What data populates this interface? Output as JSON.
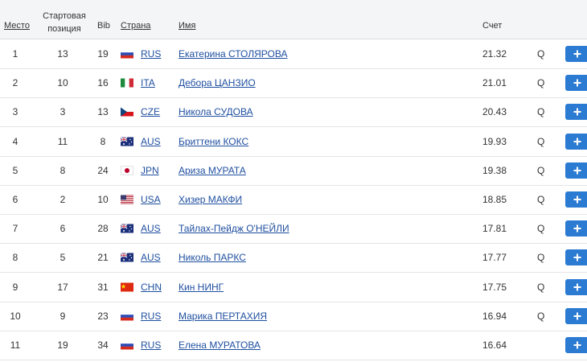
{
  "header": {
    "place": "Место",
    "start": "Стартовая позиция",
    "bib": "Bib",
    "country": "Страна",
    "name": "Имя",
    "score": "Счет"
  },
  "rows": [
    {
      "place": 1,
      "start": 13,
      "bib": 19,
      "country": "RUS",
      "name": "Екатерина СТОЛЯРОВА",
      "score": 21.32,
      "qual": "Q"
    },
    {
      "place": 2,
      "start": 10,
      "bib": 16,
      "country": "ITA",
      "name": "Дебора ЦАНЗИО",
      "score": 21.01,
      "qual": "Q"
    },
    {
      "place": 3,
      "start": 3,
      "bib": 13,
      "country": "CZE",
      "name": "Никола СУДОВА",
      "score": 20.43,
      "qual": "Q"
    },
    {
      "place": 4,
      "start": 11,
      "bib": 8,
      "country": "AUS",
      "name": "Бриттени КОКС",
      "score": 19.93,
      "qual": "Q"
    },
    {
      "place": 5,
      "start": 8,
      "bib": 24,
      "country": "JPN",
      "name": "Ариза МУРАТА",
      "score": 19.38,
      "qual": "Q"
    },
    {
      "place": 6,
      "start": 2,
      "bib": 10,
      "country": "USA",
      "name": "Хизер МАКФИ",
      "score": 18.85,
      "qual": "Q"
    },
    {
      "place": 7,
      "start": 6,
      "bib": 28,
      "country": "AUS",
      "name": "Тайлах-Пейдж О'НЕЙЛИ",
      "score": 17.81,
      "qual": "Q"
    },
    {
      "place": 8,
      "start": 5,
      "bib": 21,
      "country": "AUS",
      "name": "Николь ПАРКС",
      "score": 17.77,
      "qual": "Q"
    },
    {
      "place": 9,
      "start": 17,
      "bib": 31,
      "country": "CHN",
      "name": "Кин НИНГ",
      "score": 17.75,
      "qual": "Q"
    },
    {
      "place": 10,
      "start": 9,
      "bib": 23,
      "country": "RUS",
      "name": "Марика ПЕРТАХИЯ",
      "score": 16.94,
      "qual": "Q"
    },
    {
      "place": 11,
      "start": 19,
      "bib": 34,
      "country": "RUS",
      "name": "Елена МУРАТОВА",
      "score": 16.64
    }
  ]
}
